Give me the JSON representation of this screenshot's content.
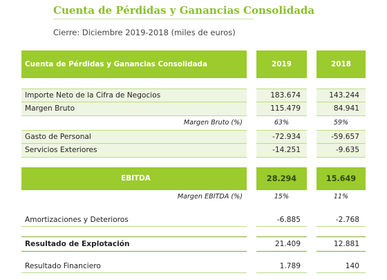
{
  "document": {
    "title": "Cuenta de Pérdidas y Ganancias Consolidada",
    "subtitle": "Cierre: Diciembre 2019-2018 (miles de euros)"
  },
  "table": {
    "header": {
      "label": "Cuenta de Pérdidas y Ganancias  Consolidada",
      "col_2019": "2019",
      "col_2018": "2018"
    },
    "rows": [
      {
        "label": "Importe Neto de la Cifra de Negocios",
        "v2019": "183.674",
        "v2018": "143.244"
      },
      {
        "label": "Margen Bruto",
        "v2019": "115.479",
        "v2018": "84.941"
      },
      {
        "label": "Margen Bruto (%)",
        "v2019": "63%",
        "v2018": "59%"
      },
      {
        "label": "Gasto de Personal",
        "v2019": "-72.934",
        "v2018": "-59.657"
      },
      {
        "label": "Servicios Exteriores",
        "v2019": "-14.251",
        "v2018": "-9.635"
      },
      {
        "label": "EBITDA",
        "v2019": "28.294",
        "v2018": "15.649"
      },
      {
        "label": "Margen EBITDA (%)",
        "v2019": "15%",
        "v2018": "11%"
      },
      {
        "label": "Amortizaciones y Deterioros",
        "v2019": "-6.885",
        "v2018": "-2.768"
      },
      {
        "label": "Resultado de Explotación",
        "v2019": "21.409",
        "v2018": "12.881"
      },
      {
        "label": "Resultado Financiero",
        "v2019": "1.789",
        "v2018": "140"
      }
    ]
  },
  "colors": {
    "accent": "#9bcb2c",
    "title": "#8bbf2a",
    "row_shade": "#eef5e2"
  }
}
